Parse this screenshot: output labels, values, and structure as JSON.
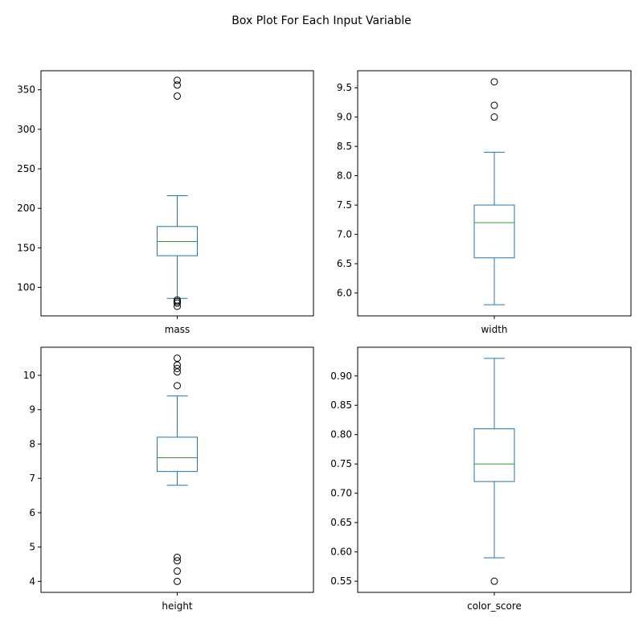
{
  "title": "Box Plot For Each Input Variable",
  "colors": {
    "box": "#1f77b4",
    "median": "#2ca02c",
    "outlier": "#000000",
    "axes": "#000000"
  },
  "chart_data": [
    {
      "type": "box",
      "xlabel": "mass",
      "ylim": [
        63.9,
        374.1
      ],
      "yticks": [
        100,
        150,
        200,
        250,
        300,
        350
      ],
      "ytick_labels": [
        "100",
        "150",
        "200",
        "250",
        "300",
        "350"
      ],
      "box": {
        "whisker_low": 86,
        "q1": 140,
        "median": 158,
        "q3": 177,
        "whisker_high": 216
      },
      "outliers": [
        76,
        80,
        82,
        84,
        342,
        356,
        362
      ]
    },
    {
      "type": "box",
      "xlabel": "width",
      "ylim": [
        5.61,
        9.79
      ],
      "yticks": [
        6.0,
        6.5,
        7.0,
        7.5,
        8.0,
        8.5,
        9.0,
        9.5
      ],
      "ytick_labels": [
        "6.0",
        "6.5",
        "7.0",
        "7.5",
        "8.0",
        "8.5",
        "9.0",
        "9.5"
      ],
      "box": {
        "whisker_low": 5.8,
        "q1": 6.6,
        "median": 7.2,
        "q3": 7.5,
        "whisker_high": 8.4
      },
      "outliers": [
        9.0,
        9.2,
        9.6
      ]
    },
    {
      "type": "box",
      "xlabel": "height",
      "ylim": [
        3.68,
        10.82
      ],
      "yticks": [
        4,
        5,
        6,
        7,
        8,
        9,
        10
      ],
      "ytick_labels": [
        "4",
        "5",
        "6",
        "7",
        "8",
        "9",
        "10"
      ],
      "box": {
        "whisker_low": 6.8,
        "q1": 7.2,
        "median": 7.6,
        "q3": 8.2,
        "whisker_high": 9.4
      },
      "outliers": [
        4.0,
        4.3,
        4.6,
        4.7,
        9.7,
        10.1,
        10.2,
        10.3,
        10.5
      ]
    },
    {
      "type": "box",
      "xlabel": "color_score",
      "ylim": [
        0.531,
        0.949
      ],
      "yticks": [
        0.55,
        0.6,
        0.65,
        0.7,
        0.75,
        0.8,
        0.85,
        0.9
      ],
      "ytick_labels": [
        "0.55",
        "0.60",
        "0.65",
        "0.70",
        "0.75",
        "0.80",
        "0.85",
        "0.90"
      ],
      "box": {
        "whisker_low": 0.59,
        "q1": 0.72,
        "median": 0.75,
        "q3": 0.81,
        "whisker_high": 0.93
      },
      "outliers": [
        0.55
      ]
    }
  ]
}
